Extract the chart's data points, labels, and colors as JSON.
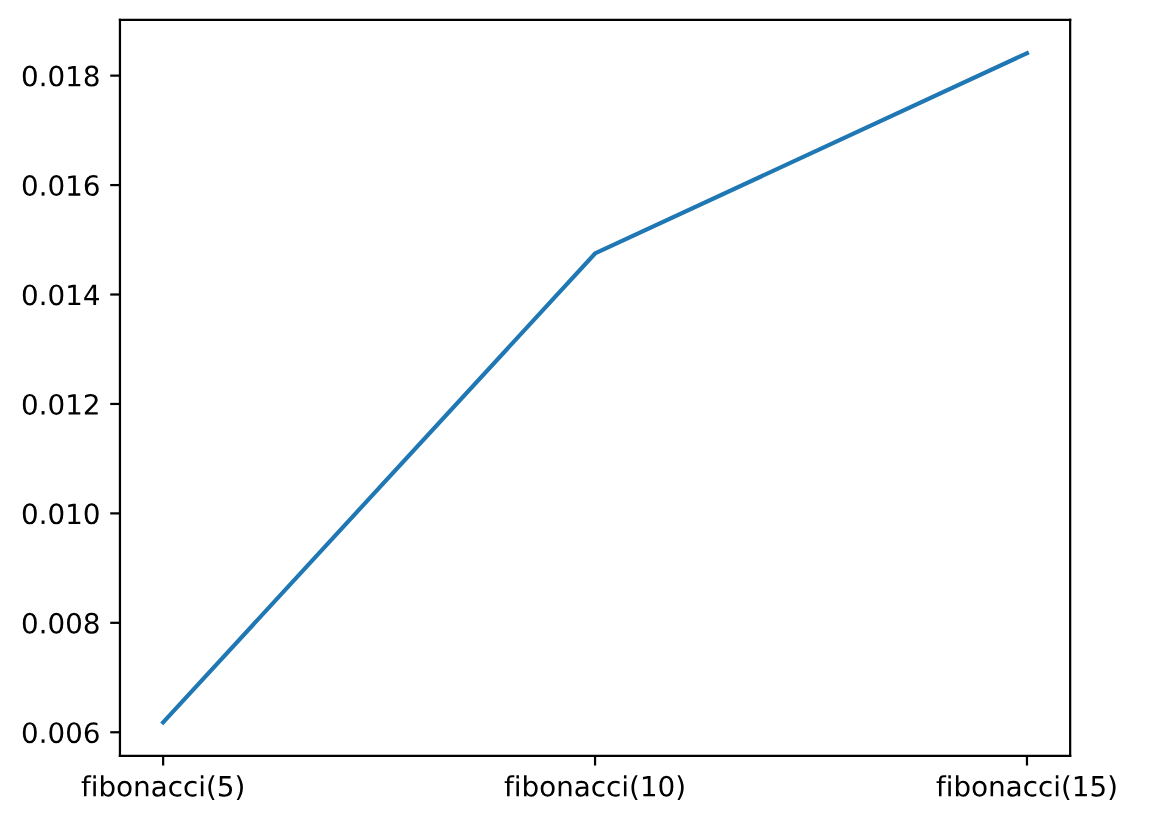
{
  "chart_data": {
    "type": "line",
    "categories": [
      "fibonacci(5)",
      "fibonacci(10)",
      "fibonacci(15)"
    ],
    "series": [
      {
        "color": "#1f77b4",
        "values": [
          0.00618,
          0.01475,
          0.01841
        ]
      }
    ],
    "ylim": [
      0.00557,
      0.01902
    ],
    "yticks": [
      {
        "value": 0.006,
        "label": "0.006"
      },
      {
        "value": 0.008,
        "label": "0.008"
      },
      {
        "value": 0.01,
        "label": "0.010"
      },
      {
        "value": 0.012,
        "label": "0.012"
      },
      {
        "value": 0.014,
        "label": "0.014"
      },
      {
        "value": 0.016,
        "label": "0.016"
      },
      {
        "value": 0.018,
        "label": "0.018"
      }
    ],
    "grid": false,
    "marker": "none",
    "line_style": "solid"
  }
}
